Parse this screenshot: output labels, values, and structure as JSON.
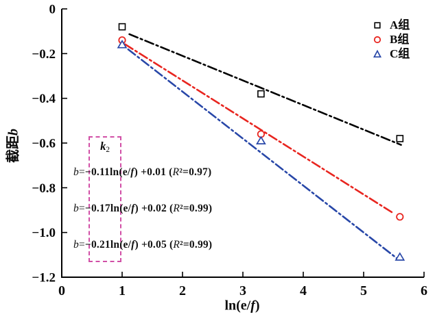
{
  "chart_data": {
    "type": "scatter",
    "title": "",
    "xlabel": "ln(e/f)",
    "ylabel": "截距b",
    "xlim": [
      0,
      6
    ],
    "ylim": [
      -1.2,
      0
    ],
    "grid": false,
    "legend_position": "upper right",
    "x_ticks": {
      "values": [
        0,
        1,
        2,
        3,
        4,
        5,
        6
      ],
      "labels": [
        "0",
        "1",
        "2",
        "3",
        "4",
        "5",
        "6"
      ]
    },
    "y_ticks": {
      "values": [
        0,
        -0.2,
        -0.4,
        -0.6,
        -0.8,
        -1.0,
        -1.2
      ],
      "labels": [
        "0",
        "−0.2",
        "−0.4",
        "−0.6",
        "−0.8",
        "−1.0",
        "−1.2"
      ]
    },
    "series": [
      {
        "name": "A组",
        "marker": "square",
        "color": "#000000",
        "x": [
          1.0,
          3.3,
          5.6
        ],
        "y": [
          -0.08,
          -0.38,
          -0.58
        ],
        "fit": {
          "slope": -0.11,
          "intercept": 0.01,
          "r2": 0.97,
          "x_range": [
            1.12,
            5.62
          ],
          "linestyle": "dash-dot"
        }
      },
      {
        "name": "B组",
        "marker": "circle",
        "color": "#e8251f",
        "x": [
          1.0,
          3.3,
          5.6
        ],
        "y": [
          -0.14,
          -0.56,
          -0.93
        ],
        "fit": {
          "slope": -0.17,
          "intercept": 0.02,
          "r2": 0.99,
          "x_range": [
            1.05,
            5.5
          ],
          "linestyle": "dash-dot"
        }
      },
      {
        "name": "C组",
        "marker": "triangle-up",
        "color": "#2847a8",
        "x": [
          1.0,
          3.3,
          5.6
        ],
        "y": [
          -0.16,
          -0.59,
          -1.11
        ],
        "fit": {
          "slope": -0.21,
          "intercept": 0.05,
          "r2": 0.99,
          "x_range": [
            1.1,
            5.56
          ],
          "linestyle": "dash-dot"
        }
      }
    ],
    "annotations": {
      "k2_box_label": "k2",
      "equations_text": [
        "b=−0.11ln(e/f) +0.01 (R²=0.97)",
        "b=−0.17ln(e/f) +0.02 (R²=0.99)",
        "b=−0.21ln(e/f) +0.05 (R²=0.99)"
      ]
    }
  },
  "styled_text": {
    "ylabel_segments": [
      [
        "b",
        "截距"
      ],
      [
        "bi",
        "b"
      ]
    ],
    "xlabel_segments": [
      [
        "b",
        "ln(e/"
      ],
      [
        "bi",
        "f"
      ],
      [
        "b",
        ")"
      ]
    ],
    "k2_segments": [
      [
        "bi",
        "k"
      ],
      [
        "sub",
        "2"
      ]
    ],
    "equation_segments": [
      [
        [
          "i",
          "b"
        ],
        [
          "n",
          "="
        ],
        [
          "b",
          "−0.11ln(e/"
        ],
        [
          "bi",
          "f"
        ],
        [
          "b",
          ") +0.01 ("
        ],
        [
          "i",
          "R"
        ],
        [
          "b",
          "²"
        ],
        [
          "b",
          "=0.97)"
        ]
      ],
      [
        [
          "i",
          "b"
        ],
        [
          "n",
          "="
        ],
        [
          "b",
          "−0.17ln(e/"
        ],
        [
          "bi",
          "f"
        ],
        [
          "b",
          ") +0.02 ("
        ],
        [
          "i",
          "R"
        ],
        [
          "b",
          "²"
        ],
        [
          "b",
          "=0.99)"
        ]
      ],
      [
        [
          "i",
          "b"
        ],
        [
          "n",
          "="
        ],
        [
          "b",
          "−0.21ln(e/"
        ],
        [
          "bi",
          "f"
        ],
        [
          "b",
          ") +0.05 ("
        ],
        [
          "i",
          "R"
        ],
        [
          "b",
          "²"
        ],
        [
          "b",
          "=0.99)"
        ]
      ]
    ]
  },
  "colors": {
    "axis": "#000000",
    "series_a": "#000000",
    "series_b": "#e8251f",
    "series_c": "#2847a8",
    "annotation_box_border": "#d14fa6"
  }
}
